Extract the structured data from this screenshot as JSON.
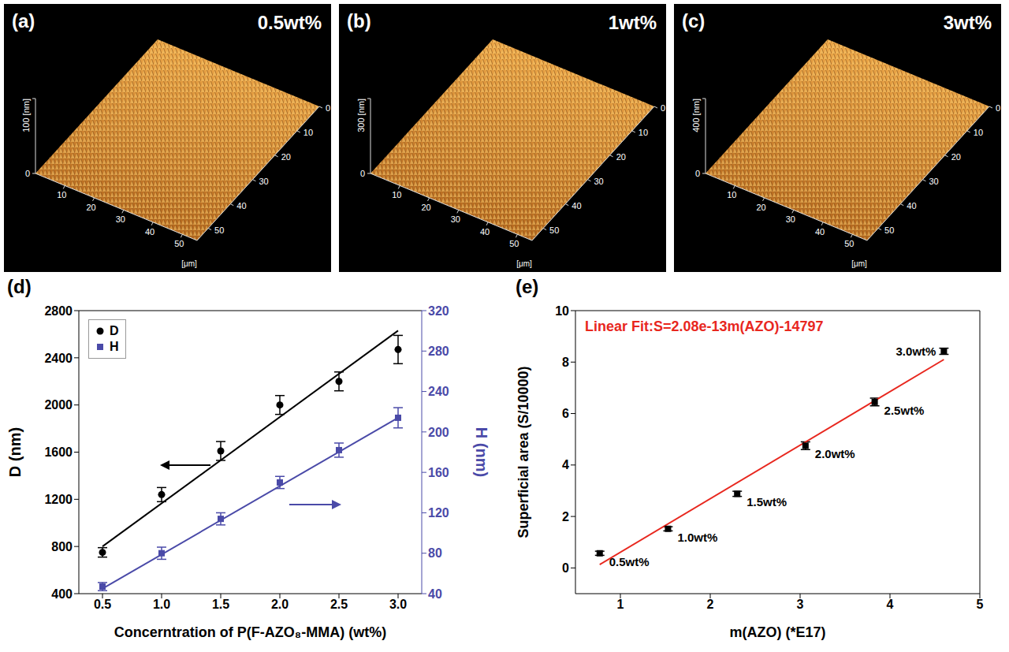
{
  "chart_data": [
    {
      "type": "afm_surface",
      "panel": "(a)",
      "label": "0.5wt%",
      "xlabel": "[μm]",
      "xlim": [
        0,
        55
      ],
      "xticks": [
        10,
        20,
        30,
        40,
        50
      ],
      "ylim": [
        0,
        55
      ],
      "yticks": [
        0,
        10,
        20,
        30,
        40,
        50
      ],
      "zlabel": "[nm]",
      "zlim": [
        0,
        100
      ],
      "zticks": [
        0,
        100
      ]
    },
    {
      "type": "afm_surface",
      "panel": "(b)",
      "label": "1wt%",
      "xlabel": "[μm]",
      "xlim": [
        0,
        55
      ],
      "xticks": [
        10,
        20,
        30,
        40,
        50
      ],
      "ylim": [
        0,
        55
      ],
      "yticks": [
        0,
        10,
        20,
        30,
        40,
        50
      ],
      "zlabel": "[nm]",
      "zlim": [
        0,
        300
      ],
      "zticks": [
        0,
        300
      ]
    },
    {
      "type": "afm_surface",
      "panel": "(c)",
      "label": "3wt%",
      "xlabel": "[μm]",
      "xlim": [
        0,
        55
      ],
      "xticks": [
        10,
        20,
        30,
        40,
        50
      ],
      "ylim": [
        0,
        55
      ],
      "yticks": [
        0,
        10,
        20,
        30,
        40,
        50
      ],
      "zlabel": "[nm]",
      "zlim": [
        0,
        400
      ],
      "zticks": [
        0,
        400
      ]
    },
    {
      "type": "line_scatter",
      "panel": "(d)",
      "xlabel": "Concerntration of P(F-AZO₈-MMA) (wt%)",
      "ylabel": "D (nm)",
      "y2label": "H (nm)",
      "xlim": [
        0.3,
        3.2
      ],
      "xticks": [
        0.5,
        {
          "value": 1,
          "label": "1.0"
        },
        1.5,
        {
          "value": 2,
          "label": "2.0"
        },
        2.5,
        {
          "value": 3,
          "label": "3.0"
        }
      ],
      "ylim": [
        400,
        2800
      ],
      "yticks": [
        400,
        800,
        1200,
        1600,
        2000,
        2400,
        2800
      ],
      "y2lim": [
        40,
        320
      ],
      "y2ticks": [
        40,
        80,
        120,
        160,
        200,
        240,
        280,
        320
      ],
      "legend": "upper left",
      "x": [
        0.5,
        1,
        1.5,
        2,
        2.5,
        3
      ],
      "series": [
        {
          "name": "D",
          "color": "#000000",
          "marker": "circle",
          "values": [
            750,
            1240,
            1610,
            2000,
            2200,
            2470
          ],
          "errors": [
            40,
            60,
            80,
            80,
            80,
            120
          ],
          "fit": {
            "x": [
              0.5,
              3
            ],
            "values": [
              800,
              2630
            ]
          }
        },
        {
          "name": "H",
          "color": "#4a4aa8",
          "marker": "square",
          "axis": "y2",
          "values": [
            47,
            80,
            114,
            150,
            182,
            214
          ],
          "errors": [
            4,
            6,
            6,
            6,
            7,
            10
          ],
          "fit": {
            "x": [
              0.5,
              3
            ],
            "values": [
              45,
              214
            ]
          }
        }
      ]
    },
    {
      "type": "scatter",
      "panel": "(e)",
      "annotation": "Linear Fit:S=2.08e-13m(AZO)-14797",
      "xlabel": "m(AZO) (*E17)",
      "ylabel": "Superficial area (S/10000)",
      "xlim": [
        0.5,
        5
      ],
      "xticks": [
        1,
        2,
        3,
        4,
        5
      ],
      "ylim": [
        -1,
        10
      ],
      "yticks": [
        0,
        2,
        4,
        6,
        8,
        10
      ],
      "color": "#000000",
      "marker": "square",
      "x": [
        0.77,
        1.53,
        2.3,
        3.06,
        3.83,
        4.6
      ],
      "values": [
        0.57,
        1.52,
        2.88,
        4.75,
        6.45,
        8.42
      ],
      "errors": [
        0.08,
        0.08,
        0.1,
        0.15,
        0.15,
        0.12
      ],
      "point_labels": [
        "0.5wt%",
        "1.0wt%",
        "1.5wt%",
        "2.0wt%",
        "2.5wt%",
        "3.0wt%"
      ],
      "fit": {
        "x": [
          0.77,
          4.6
        ],
        "values": [
          0.13,
          8.1
        ],
        "color": "#e8271e"
      }
    }
  ]
}
